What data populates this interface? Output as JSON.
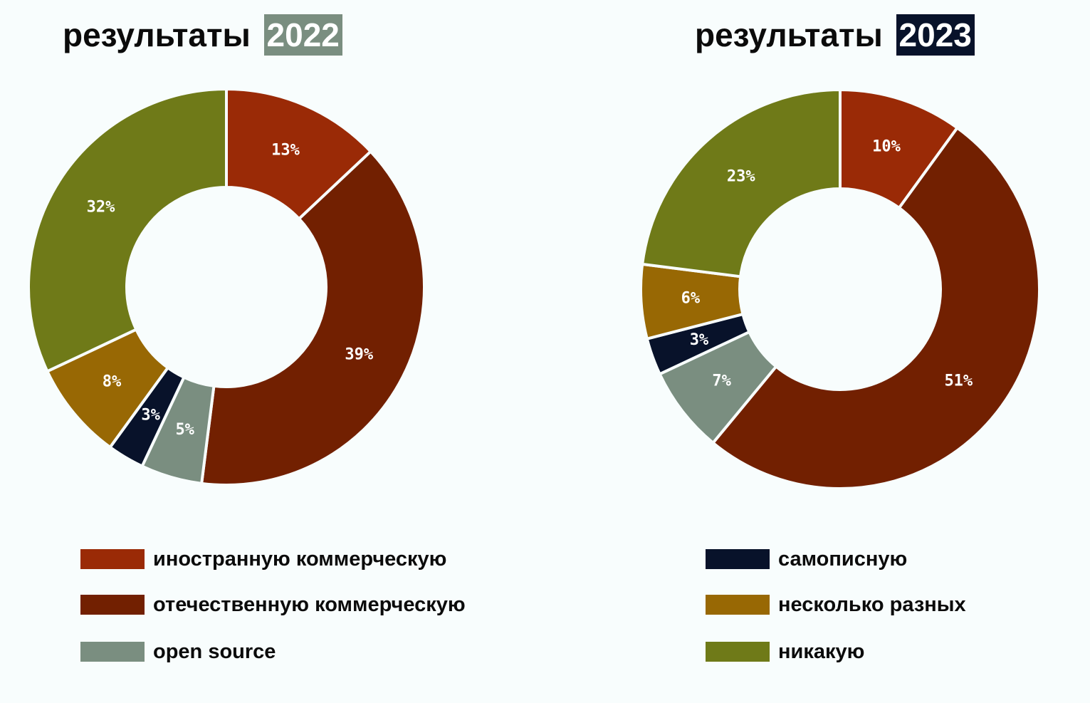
{
  "colors": {
    "foreign_commercial": "#9a2a06",
    "domestic_commercial": "#722001",
    "open_source": "#7a8e80",
    "self_written": "#08122a",
    "several": "#986804",
    "none": "#6f7a18"
  },
  "legend": [
    {
      "key": "foreign_commercial",
      "label": "иностранную коммерческую",
      "color": "#9a2a06"
    },
    {
      "key": "domestic_commercial",
      "label": "отечественную коммерческую",
      "color": "#722001"
    },
    {
      "key": "open_source",
      "label": "open source",
      "color": "#7a8e80"
    },
    {
      "key": "self_written",
      "label": "самописную",
      "color": "#08122a"
    },
    {
      "key": "several",
      "label": "несколько разных",
      "color": "#986804"
    },
    {
      "key": "none",
      "label": "никакую",
      "color": "#6f7a18"
    }
  ],
  "chart_data": [
    {
      "type": "pie",
      "variant": "donut",
      "title": "результаты",
      "title_highlight": "2022",
      "title_highlight_color": "#7a8e80",
      "categories": [
        "иностранную коммерческую",
        "отечественную коммерческую",
        "open source",
        "самописную",
        "несколько разных",
        "никакую"
      ],
      "values": [
        13,
        39,
        5,
        3,
        8,
        32
      ],
      "labels": [
        "13%",
        "39%",
        "5%",
        "3%",
        "8%",
        "32%"
      ],
      "colors": [
        "#9a2a06",
        "#722001",
        "#7a8e80",
        "#08122a",
        "#986804",
        "#6f7a18"
      ],
      "unit": "%"
    },
    {
      "type": "pie",
      "variant": "donut",
      "title": "результаты",
      "title_highlight": "2023",
      "title_highlight_color": "#08122a",
      "categories": [
        "иностранную коммерческую",
        "отечественную коммерческую",
        "open source",
        "самописную",
        "несколько разных",
        "никакую"
      ],
      "values": [
        10,
        51,
        7,
        3,
        6,
        23
      ],
      "labels": [
        "10%",
        "51%",
        "7%",
        "3%",
        "6%",
        "23%"
      ],
      "colors": [
        "#9a2a06",
        "#722001",
        "#7a8e80",
        "#08122a",
        "#986804",
        "#6f7a18"
      ],
      "unit": "%"
    }
  ]
}
